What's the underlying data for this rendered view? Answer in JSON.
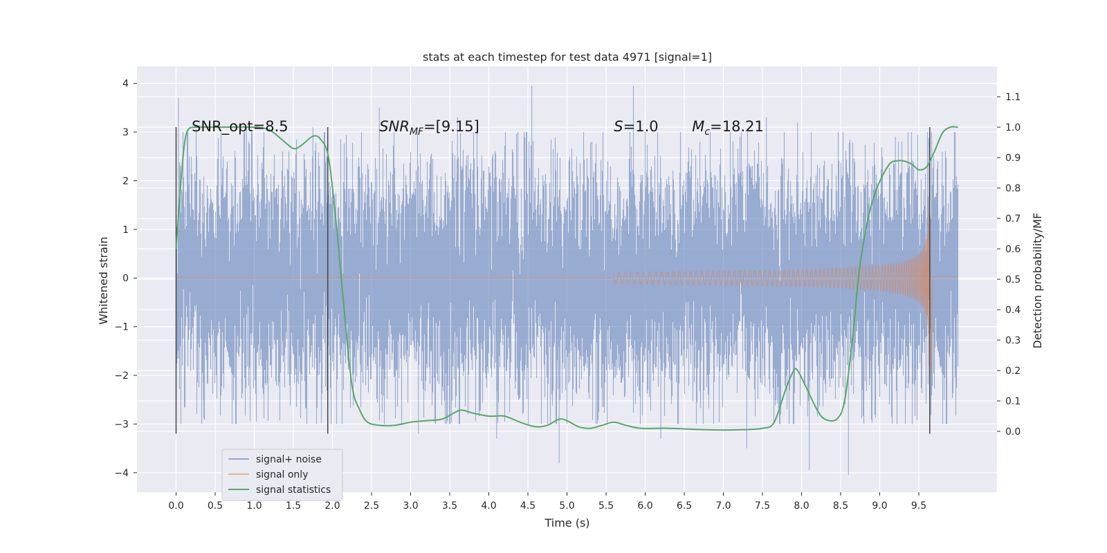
{
  "chart_data": {
    "type": "line",
    "title": "stats at each timestep for test data 4971 [signal=1]",
    "xlabel": "Time (s)",
    "ylabel": "Whitened strain",
    "ylabel_right": "Detection probability/MF",
    "xlim": [
      -0.5,
      10.5
    ],
    "ylim": [
      -4.4,
      4.35
    ],
    "ylim_right": [
      -0.2,
      1.2
    ],
    "x_ticks": [
      "0.0",
      "0.5",
      "1.0",
      "1.5",
      "2.0",
      "2.5",
      "3.0",
      "3.5",
      "4.0",
      "4.5",
      "5.0",
      "5.5",
      "6.0",
      "6.5",
      "7.0",
      "7.5",
      "8.0",
      "8.5",
      "9.0",
      "9.5"
    ],
    "y_ticks": [
      "4",
      "3",
      "2",
      "1",
      "0",
      "−1",
      "−2",
      "−3",
      "−4"
    ],
    "y_ticks_right": [
      "1.1",
      "1.0",
      "0.9",
      "0.8",
      "0.7",
      "0.6",
      "0.5",
      "0.4",
      "0.3",
      "0.2",
      "0.1",
      "0.0"
    ],
    "grid": true,
    "legend_position": "lower-left",
    "vertical_markers": [
      0.0,
      1.94,
      9.64
    ],
    "annotations": [
      {
        "label": "SNR_opt=8.5",
        "x": 0.2,
        "y": 3.1
      },
      {
        "label": "SNR_MF=[9.15]",
        "x": 2.6,
        "y": 3.1
      },
      {
        "label": "S=1.0",
        "x": 5.6,
        "y": 3.1
      },
      {
        "label": "M_c=18.21",
        "x": 6.6,
        "y": 3.1
      }
    ],
    "series": [
      {
        "name": "signal+ noise",
        "color": "#4c72b0",
        "axis": "left",
        "envelope_x": [
          0.0,
          10.0
        ],
        "envelope_typical": [
          -1.5,
          1.5
        ],
        "peaks_x": [
          0.03,
          0.35,
          0.9,
          1.75,
          2.6,
          3.1,
          3.6,
          4.1,
          4.55,
          4.9,
          5.85,
          6.2,
          6.7,
          7.3,
          7.55,
          7.95,
          8.1,
          8.6,
          9.2,
          9.8
        ],
        "peaks_y": [
          3.7,
          -2.5,
          3.1,
          3.1,
          3.5,
          -3.2,
          3.3,
          -3.3,
          3.95,
          -3.8,
          3.95,
          -3.3,
          2.8,
          -3.5,
          3.3,
          3.2,
          -3.95,
          -4.05,
          2.9,
          2.6
        ]
      },
      {
        "name": "signal only",
        "color": "#dd8452",
        "axis": "left",
        "chirp_start": 5.6,
        "chirp_peak_t": 9.64,
        "chirp_peak_amp": 2.2
      },
      {
        "name": "signal statistics",
        "color": "#55a868",
        "axis": "right",
        "x": [
          0.0,
          0.05,
          0.1,
          0.15,
          0.25,
          0.5,
          1.0,
          1.2,
          1.35,
          1.5,
          1.6,
          1.75,
          1.85,
          1.95,
          2.05,
          2.15,
          2.25,
          2.35,
          2.45,
          2.6,
          2.8,
          3.0,
          3.2,
          3.4,
          3.55,
          3.65,
          3.8,
          4.0,
          4.2,
          4.4,
          4.6,
          4.75,
          4.9,
          5.0,
          5.15,
          5.3,
          5.45,
          5.6,
          5.75,
          5.95,
          6.3,
          6.8,
          7.2,
          7.5,
          7.65,
          7.8,
          7.9,
          7.95,
          8.05,
          8.2,
          8.3,
          8.45,
          8.55,
          8.65,
          8.75,
          8.9,
          9.1,
          9.25,
          9.4,
          9.5,
          9.6,
          9.7,
          9.8,
          9.9,
          10.0
        ],
        "y": [
          0.6,
          0.78,
          0.93,
          0.99,
          1.0,
          1.0,
          1.0,
          0.99,
          0.96,
          0.93,
          0.94,
          0.97,
          0.96,
          0.9,
          0.68,
          0.4,
          0.15,
          0.07,
          0.03,
          0.02,
          0.02,
          0.03,
          0.035,
          0.04,
          0.06,
          0.07,
          0.06,
          0.05,
          0.05,
          0.03,
          0.015,
          0.02,
          0.04,
          0.035,
          0.015,
          0.01,
          0.02,
          0.03,
          0.02,
          0.01,
          0.01,
          0.005,
          0.005,
          0.01,
          0.03,
          0.14,
          0.2,
          0.2,
          0.15,
          0.07,
          0.04,
          0.04,
          0.1,
          0.3,
          0.55,
          0.75,
          0.87,
          0.89,
          0.88,
          0.86,
          0.87,
          0.92,
          0.98,
          1.0,
          1.0
        ]
      }
    ]
  }
}
